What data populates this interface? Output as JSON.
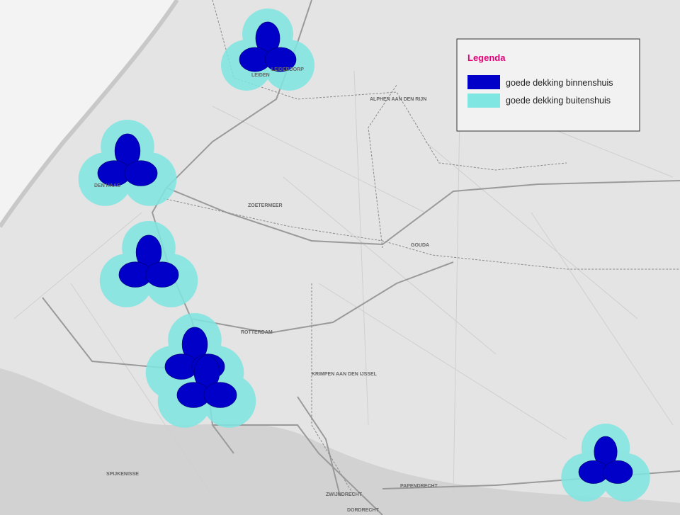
{
  "legend": {
    "title": "Legenda",
    "items": [
      {
        "label": "goede dekking binnenshuis",
        "color": "#0000c8"
      },
      {
        "label": "goede dekking buitenshuis",
        "color": "#7fe6e2"
      }
    ]
  },
  "places": [
    "LEIDEN",
    "LEIDERDORP",
    "ALPHEN AAN DEN RIJN",
    "DEN HAAG",
    "ZOETERMEER",
    "GOUDA",
    "ROTTERDAM",
    "KRIMPEN AAN DEN IJSSEL",
    "SPIJKENISSE",
    "ZWIJNDRECHT",
    "PAPENDRECHT",
    "DORDRECHT"
  ]
}
